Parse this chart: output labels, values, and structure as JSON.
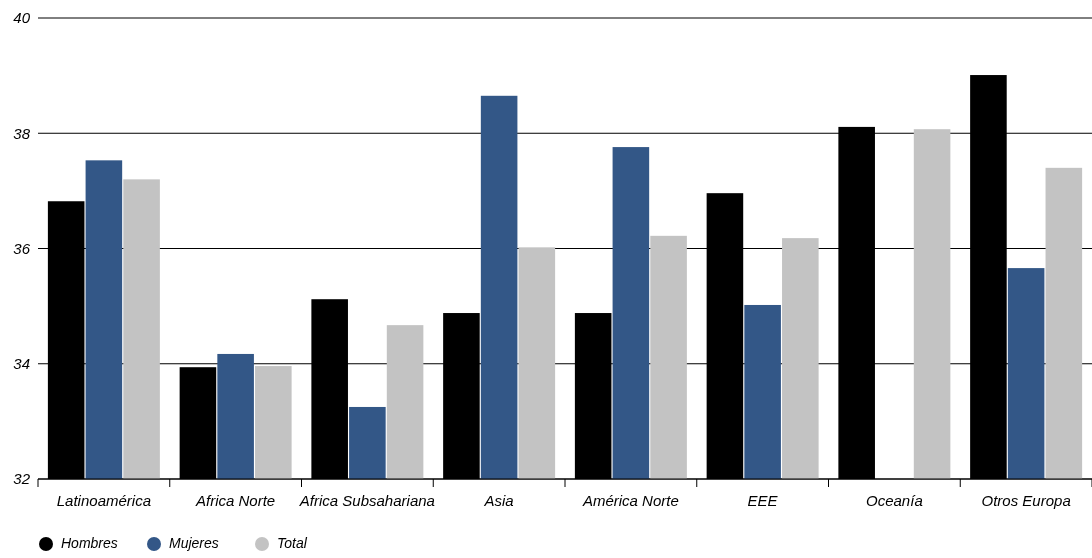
{
  "chart_data": {
    "type": "bar",
    "categories": [
      "Latinoamérica",
      "Africa Norte",
      "Africa Subsahariana",
      "Asia",
      "América Norte",
      "EEE",
      "Oceanía",
      "Otros Europa"
    ],
    "series": [
      {
        "name": "Hombres",
        "color": "#000000",
        "values": [
          36.82,
          33.94,
          35.12,
          34.88,
          34.88,
          36.96,
          38.11,
          39.01
        ]
      },
      {
        "name": "Mujeres",
        "color": "#335787",
        "values": [
          37.53,
          34.17,
          33.25,
          38.65,
          37.76,
          35.02,
          null,
          35.66
        ]
      },
      {
        "name": "Total",
        "color": "#c3c3c3",
        "values": [
          37.2,
          33.96,
          34.67,
          36.02,
          36.22,
          36.18,
          38.07,
          37.4
        ]
      }
    ],
    "ylim": [
      32,
      40
    ],
    "yticks": [
      32,
      34,
      36,
      38,
      40
    ],
    "grid": "y",
    "legend": "bottom left"
  }
}
